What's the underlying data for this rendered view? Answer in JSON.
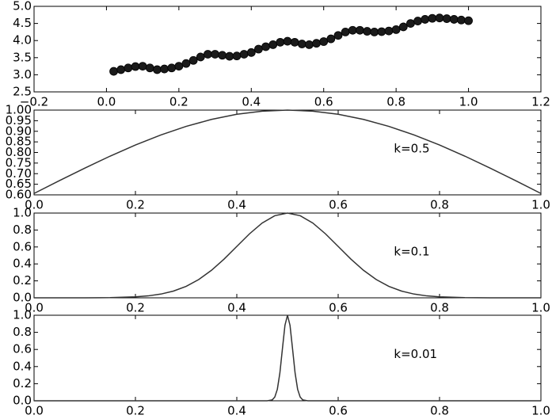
{
  "chart_data": [
    {
      "type": "scatter",
      "color": "#1a1a1a",
      "x": [
        0.02,
        0.04,
        0.06,
        0.08,
        0.1,
        0.12,
        0.14,
        0.16,
        0.18,
        0.2,
        0.22,
        0.24,
        0.26,
        0.28,
        0.3,
        0.32,
        0.34,
        0.36,
        0.38,
        0.4,
        0.42,
        0.44,
        0.46,
        0.48,
        0.5,
        0.52,
        0.54,
        0.56,
        0.58,
        0.6,
        0.62,
        0.64,
        0.66,
        0.68,
        0.7,
        0.72,
        0.74,
        0.76,
        0.78,
        0.8,
        0.82,
        0.84,
        0.86,
        0.88,
        0.9,
        0.92,
        0.94,
        0.96,
        0.98,
        1.0
      ],
      "y": [
        3.1,
        3.15,
        3.2,
        3.24,
        3.25,
        3.2,
        3.15,
        3.17,
        3.2,
        3.25,
        3.33,
        3.42,
        3.52,
        3.6,
        3.6,
        3.57,
        3.54,
        3.55,
        3.6,
        3.65,
        3.75,
        3.82,
        3.88,
        3.95,
        3.98,
        3.95,
        3.9,
        3.88,
        3.92,
        3.97,
        4.05,
        4.15,
        4.25,
        4.3,
        4.3,
        4.27,
        4.25,
        4.26,
        4.28,
        4.32,
        4.4,
        4.5,
        4.57,
        4.62,
        4.65,
        4.66,
        4.64,
        4.62,
        4.6,
        4.58
      ],
      "xlim": [
        -0.2,
        1.2
      ],
      "xticks": [
        {
          "value": -0.2,
          "label": "−0.2"
        },
        {
          "value": 0,
          "label": "0.0"
        },
        0.2,
        0.4,
        0.6,
        0.8,
        {
          "value": 1,
          "label": "1.0"
        },
        1.2
      ],
      "ylim": [
        2.5,
        5
      ],
      "yticks": [
        2.5,
        {
          "value": 3,
          "label": "3.0"
        },
        3.5,
        {
          "value": 4,
          "label": "4.0"
        },
        4.5,
        {
          "value": 5,
          "label": "5.0"
        }
      ]
    },
    {
      "type": "line",
      "color": "#333333",
      "annotation": "k=0.5",
      "x": [
        0,
        0.05,
        0.1,
        0.15,
        0.2,
        0.25,
        0.3,
        0.35,
        0.4,
        0.45,
        0.5,
        0.55,
        0.6,
        0.65,
        0.7,
        0.75,
        0.8,
        0.85,
        0.9,
        0.95,
        1
      ],
      "y": [
        0.6065,
        0.667,
        0.7261,
        0.7827,
        0.8353,
        0.8825,
        0.9231,
        0.956,
        0.9802,
        0.995,
        1,
        0.995,
        0.9802,
        0.956,
        0.9231,
        0.8825,
        0.8353,
        0.7827,
        0.7261,
        0.667,
        0.6065
      ],
      "xlim": [
        0,
        1
      ],
      "xticks": [
        {
          "value": 0,
          "label": "0.0"
        },
        0.2,
        0.4,
        0.6,
        0.8,
        {
          "value": 1,
          "label": "1.0"
        }
      ],
      "ylim": [
        0.6,
        1
      ],
      "yticks": [
        {
          "value": 0.6,
          "label": "0.60"
        },
        0.65,
        {
          "value": 0.7,
          "label": "0.70"
        },
        0.75,
        {
          "value": 0.8,
          "label": "0.80"
        },
        0.85,
        {
          "value": 0.9,
          "label": "0.90"
        },
        0.95,
        {
          "value": 1,
          "label": "1.00"
        }
      ]
    },
    {
      "type": "line",
      "color": "#333333",
      "annotation": "k=0.1",
      "x": [
        0,
        0.05,
        0.1,
        0.15,
        0.2,
        0.225,
        0.25,
        0.275,
        0.3,
        0.325,
        0.35,
        0.375,
        0.4,
        0.425,
        0.45,
        0.475,
        0.5,
        0.525,
        0.55,
        0.575,
        0.6,
        0.625,
        0.65,
        0.675,
        0.7,
        0.725,
        0.75,
        0.775,
        0.8,
        0.85,
        0.9,
        0.95,
        1
      ],
      "y": [
        0,
        0,
        0.0003,
        0.0022,
        0.0111,
        0.0228,
        0.0439,
        0.0796,
        0.1353,
        0.2163,
        0.3247,
        0.4578,
        0.6065,
        0.7548,
        0.8825,
        0.9692,
        1,
        0.9692,
        0.8825,
        0.7548,
        0.6065,
        0.4578,
        0.3247,
        0.2163,
        0.1353,
        0.0796,
        0.0439,
        0.0228,
        0.0111,
        0.0022,
        0.0003,
        0,
        0
      ],
      "xlim": [
        0,
        1
      ],
      "xticks": [
        {
          "value": 0,
          "label": "0.0"
        },
        0.2,
        0.4,
        0.6,
        0.8,
        {
          "value": 1,
          "label": "1.0"
        }
      ],
      "ylim": [
        0,
        1
      ],
      "yticks": [
        {
          "value": 0,
          "label": "0.0"
        },
        0.2,
        0.4,
        0.6,
        0.8,
        {
          "value": 1,
          "label": "1.0"
        }
      ]
    },
    {
      "type": "line",
      "color": "#333333",
      "annotation": "k=0.01",
      "x": [
        0,
        0.46,
        0.47,
        0.475,
        0.48,
        0.485,
        0.49,
        0.495,
        0.5,
        0.505,
        0.51,
        0.515,
        0.52,
        0.525,
        0.53,
        0.54,
        1
      ],
      "y": [
        0,
        0,
        0.011,
        0.044,
        0.135,
        0.325,
        0.607,
        0.882,
        1,
        0.882,
        0.607,
        0.325,
        0.135,
        0.044,
        0.011,
        0,
        0
      ],
      "xlim": [
        0,
        1
      ],
      "xticks": [
        {
          "value": 0,
          "label": "0.0"
        },
        0.2,
        0.4,
        0.6,
        0.8,
        {
          "value": 1,
          "label": "1.0"
        }
      ],
      "ylim": [
        0,
        1
      ],
      "yticks": [
        {
          "value": 0,
          "label": "0.0"
        },
        0.2,
        0.4,
        0.6,
        0.8,
        {
          "value": 1,
          "label": "1.0"
        }
      ]
    }
  ]
}
